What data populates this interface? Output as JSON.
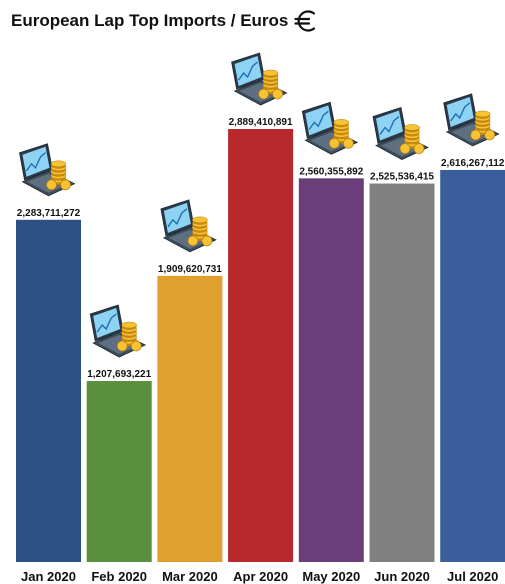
{
  "chart_data": {
    "type": "bar",
    "title": "European Lap Top Imports /  Euros",
    "categories": [
      "Jan 2020",
      "Feb 2020",
      "Mar 2020",
      "Apr 2020",
      "May 2020",
      "Jun 2020",
      "Jul 2020"
    ],
    "values": [
      2283711272,
      1207693221,
      1909620731,
      2889410891,
      2560355892,
      2525536415,
      2616267112
    ],
    "value_labels": [
      "2,283,711,272",
      "1,207,693,221",
      "1,909,620,731",
      "2,889,410,891",
      "2,560,355,892",
      "2,525,536,415",
      "2,616,267,112"
    ],
    "colors": [
      "#2b5083",
      "#5a8f3d",
      "#e0a030",
      "#b8282c",
      "#6a3e78",
      "#808080",
      "#3a5e9c"
    ],
    "bar_icon": "laptop-with-coins-icon",
    "title_icon": "euro-icon",
    "xlabel": "",
    "ylabel": "",
    "ylim": [
      0,
      3350000000
    ],
    "grid": false,
    "legend": "none"
  }
}
